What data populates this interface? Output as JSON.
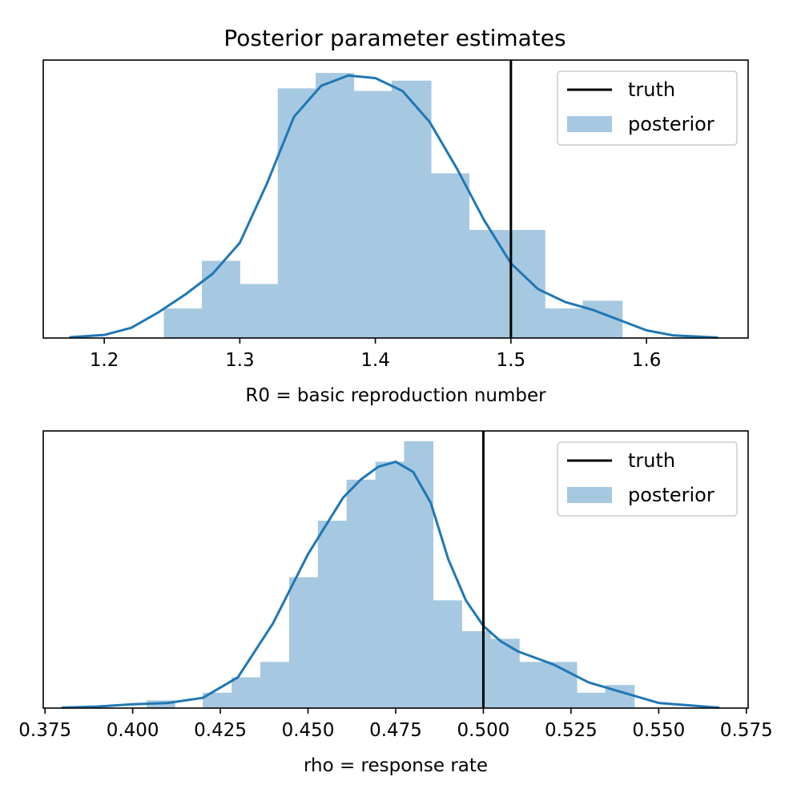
{
  "figure_title": "Posterior parameter estimates",
  "colors": {
    "hist": "#a6c8e1",
    "kde": "#1f77b4",
    "truth": "#000000"
  },
  "chart_data": [
    {
      "type": "histogram",
      "xlabel": "R0 = basic reproduction number",
      "ylabel": "",
      "xlim": [
        1.155,
        1.675
      ],
      "ylim": [
        0,
        1.08
      ],
      "xticks": [
        1.2,
        1.3,
        1.4,
        1.5,
        1.6
      ],
      "xtick_labels": [
        "1.2",
        "1.3",
        "1.4",
        "1.5",
        "1.6"
      ],
      "yticks_shown": false,
      "truth": 1.5,
      "legend": {
        "position": "top-right",
        "entries": [
          "truth",
          "posterior"
        ]
      },
      "bins": [
        {
          "x0": 1.244,
          "x1": 1.272,
          "h": 0.115
        },
        {
          "x0": 1.272,
          "x1": 1.3,
          "h": 0.3
        },
        {
          "x0": 1.3,
          "x1": 1.328,
          "h": 0.21
        },
        {
          "x0": 1.328,
          "x1": 1.356,
          "h": 0.97
        },
        {
          "x0": 1.356,
          "x1": 1.384,
          "h": 1.03
        },
        {
          "x0": 1.384,
          "x1": 1.412,
          "h": 0.96
        },
        {
          "x0": 1.412,
          "x1": 1.441,
          "h": 1.0
        },
        {
          "x0": 1.441,
          "x1": 1.469,
          "h": 0.64
        },
        {
          "x0": 1.469,
          "x1": 1.497,
          "h": 0.42
        },
        {
          "x0": 1.497,
          "x1": 1.525,
          "h": 0.42
        },
        {
          "x0": 1.525,
          "x1": 1.553,
          "h": 0.115
        },
        {
          "x0": 1.553,
          "x1": 1.582,
          "h": 0.145
        }
      ],
      "kde": {
        "x": [
          1.175,
          1.2,
          1.22,
          1.24,
          1.26,
          1.28,
          1.3,
          1.32,
          1.34,
          1.36,
          1.38,
          1.4,
          1.42,
          1.44,
          1.46,
          1.48,
          1.5,
          1.52,
          1.54,
          1.56,
          1.58,
          1.6,
          1.62,
          1.652
        ],
        "y": [
          0.003,
          0.012,
          0.04,
          0.1,
          0.17,
          0.25,
          0.37,
          0.6,
          0.86,
          0.98,
          1.02,
          1.01,
          0.96,
          0.84,
          0.66,
          0.46,
          0.29,
          0.19,
          0.14,
          0.11,
          0.07,
          0.03,
          0.01,
          0.002
        ]
      }
    },
    {
      "type": "histogram",
      "xlabel": "rho = response rate",
      "ylabel": "",
      "xlim": [
        0.3745,
        0.5755
      ],
      "ylim": [
        0,
        1.08
      ],
      "xticks": [
        0.375,
        0.4,
        0.425,
        0.45,
        0.475,
        0.5,
        0.525,
        0.55,
        0.575
      ],
      "xtick_labels": [
        "0.375",
        "0.400",
        "0.425",
        "0.450",
        "0.475",
        "0.500",
        "0.525",
        "0.550",
        "0.575"
      ],
      "yticks_shown": false,
      "truth": 0.5,
      "legend": {
        "position": "top-right",
        "entries": [
          "truth",
          "posterior"
        ]
      },
      "bins": [
        {
          "x0": 0.404,
          "x1": 0.412,
          "h": 0.03
        },
        {
          "x0": 0.412,
          "x1": 0.42,
          "h": 0.0
        },
        {
          "x0": 0.42,
          "x1": 0.4282,
          "h": 0.06
        },
        {
          "x0": 0.4282,
          "x1": 0.4364,
          "h": 0.12
        },
        {
          "x0": 0.4364,
          "x1": 0.4446,
          "h": 0.18
        },
        {
          "x0": 0.4446,
          "x1": 0.4528,
          "h": 0.51
        },
        {
          "x0": 0.4528,
          "x1": 0.461,
          "h": 0.73
        },
        {
          "x0": 0.461,
          "x1": 0.4692,
          "h": 0.89
        },
        {
          "x0": 0.4692,
          "x1": 0.4774,
          "h": 0.96
        },
        {
          "x0": 0.4774,
          "x1": 0.4856,
          "h": 1.04
        },
        {
          "x0": 0.4856,
          "x1": 0.4938,
          "h": 0.42
        },
        {
          "x0": 0.4938,
          "x1": 0.502,
          "h": 0.3
        },
        {
          "x0": 0.502,
          "x1": 0.5102,
          "h": 0.27
        },
        {
          "x0": 0.5102,
          "x1": 0.5184,
          "h": 0.18
        },
        {
          "x0": 0.5184,
          "x1": 0.5266,
          "h": 0.18
        },
        {
          "x0": 0.5266,
          "x1": 0.5348,
          "h": 0.06
        },
        {
          "x0": 0.5348,
          "x1": 0.543,
          "h": 0.09
        }
      ],
      "kde": {
        "x": [
          0.38,
          0.39,
          0.4,
          0.41,
          0.42,
          0.43,
          0.44,
          0.45,
          0.46,
          0.465,
          0.47,
          0.475,
          0.48,
          0.485,
          0.49,
          0.495,
          0.5,
          0.505,
          0.51,
          0.52,
          0.53,
          0.54,
          0.55,
          0.567
        ],
        "y": [
          0.002,
          0.006,
          0.015,
          0.02,
          0.04,
          0.12,
          0.33,
          0.6,
          0.82,
          0.89,
          0.94,
          0.96,
          0.92,
          0.8,
          0.58,
          0.42,
          0.32,
          0.26,
          0.22,
          0.17,
          0.1,
          0.06,
          0.02,
          0.002
        ]
      }
    }
  ]
}
